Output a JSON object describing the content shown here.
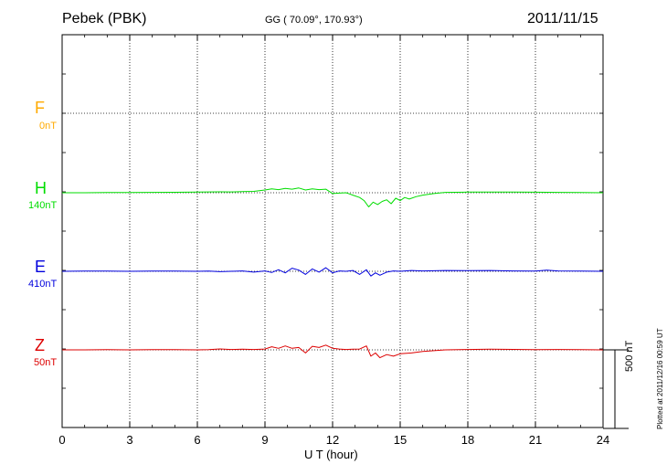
{
  "header": {
    "station": "Pebek (PBK)",
    "coords": "GG ( 70.09°, 170.93°)",
    "date": "2011/11/15"
  },
  "plotted_note": "Plotted at 2011/12/16 00:59 UT",
  "scale_bar": {
    "label": "500 nT",
    "value_nT": 500
  },
  "chart_data": {
    "type": "line",
    "title": "",
    "xlabel": "U T (hour)",
    "ylabel": "",
    "xlim": [
      0,
      24
    ],
    "xticks": [
      0,
      3,
      6,
      9,
      12,
      15,
      18,
      21,
      24
    ],
    "grid": true,
    "series": [
      {
        "name": "F",
        "scale_label": "0nT",
        "color": "#ffaa00",
        "x": [],
        "values": []
      },
      {
        "name": "H",
        "scale_label": "140nT",
        "color": "#00dd00",
        "x": [
          0,
          1,
          2,
          3,
          4,
          5,
          6,
          6.5,
          7,
          7.5,
          8,
          8.5,
          9,
          9.3,
          9.6,
          9.9,
          10.2,
          10.5,
          10.8,
          11.1,
          11.4,
          11.7,
          12,
          12.3,
          12.6,
          12.9,
          13.2,
          13.4,
          13.6,
          13.8,
          14,
          14.2,
          14.4,
          14.6,
          14.8,
          15,
          15.2,
          15.4,
          15.7,
          16,
          16.5,
          17,
          18,
          19,
          20,
          21,
          22,
          23,
          24
        ],
        "values": [
          0,
          0,
          2,
          3,
          5,
          6,
          8,
          10,
          12,
          10,
          14,
          18,
          35,
          50,
          40,
          55,
          45,
          60,
          35,
          50,
          40,
          45,
          -10,
          -5,
          0,
          -30,
          -60,
          -100,
          -180,
          -120,
          -150,
          -110,
          -90,
          -140,
          -70,
          -100,
          -60,
          -80,
          -50,
          -30,
          -10,
          5,
          8,
          8,
          8,
          7,
          5,
          3,
          0
        ]
      },
      {
        "name": "E",
        "scale_label": "410nT",
        "color": "#0000dd",
        "x": [
          0,
          1,
          2,
          3,
          4,
          5,
          6,
          6.5,
          7,
          7.5,
          8,
          8.5,
          9,
          9.3,
          9.6,
          9.9,
          10.2,
          10.5,
          10.8,
          11.1,
          11.4,
          11.7,
          12,
          12.3,
          12.6,
          12.9,
          13.2,
          13.5,
          13.7,
          13.9,
          14.1,
          14.4,
          14.7,
          15,
          15.5,
          16,
          17,
          18,
          19,
          20,
          21,
          21.5,
          22,
          23,
          24
        ],
        "values": [
          0,
          2,
          3,
          0,
          3,
          2,
          0,
          2,
          -5,
          0,
          5,
          -10,
          5,
          -15,
          20,
          -20,
          40,
          15,
          -40,
          30,
          -10,
          45,
          -20,
          5,
          0,
          10,
          -40,
          20,
          -60,
          -20,
          -50,
          -10,
          5,
          0,
          10,
          5,
          10,
          8,
          10,
          5,
          3,
          15,
          5,
          3,
          0
        ]
      },
      {
        "name": "Z",
        "scale_label": "50nT",
        "color": "#dd0000",
        "x": [
          0,
          1,
          2,
          3,
          4,
          5,
          6,
          6.5,
          7,
          7.5,
          8,
          8.5,
          9,
          9.3,
          9.6,
          9.9,
          10.2,
          10.5,
          10.8,
          11.1,
          11.4,
          11.7,
          12,
          12.3,
          12.6,
          12.9,
          13.2,
          13.5,
          13.7,
          13.9,
          14.1,
          14.4,
          14.7,
          15,
          15.5,
          16,
          17,
          18,
          19,
          20,
          21,
          22,
          23,
          24
        ],
        "values": [
          0,
          0,
          2,
          0,
          3,
          2,
          0,
          3,
          12,
          5,
          8,
          5,
          10,
          40,
          20,
          50,
          20,
          30,
          -40,
          45,
          30,
          60,
          20,
          10,
          5,
          8,
          10,
          50,
          -80,
          -40,
          -100,
          -60,
          -80,
          -50,
          -40,
          -20,
          0,
          5,
          8,
          6,
          3,
          5,
          3,
          0
        ]
      }
    ]
  }
}
